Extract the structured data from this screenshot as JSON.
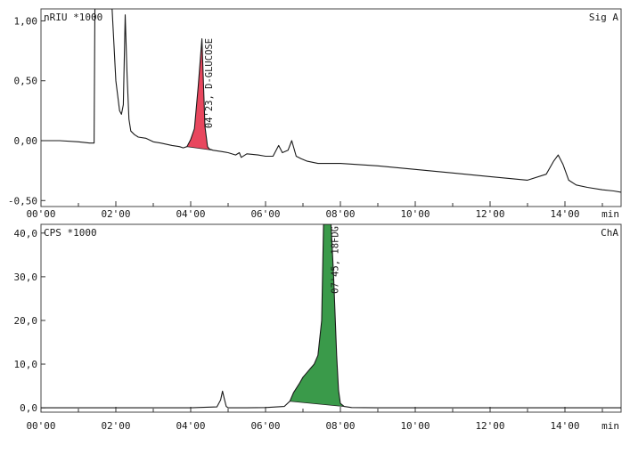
{
  "chart_data": [
    {
      "type": "line",
      "panel": "top",
      "ylabel": "nRIU *1000",
      "signal_label": "Sig A",
      "x_unit": "min",
      "xlim": [
        0,
        15.5
      ],
      "ylim": [
        -0.55,
        1.1
      ],
      "x_ticks": [
        0,
        2,
        4,
        6,
        8,
        10,
        12,
        14
      ],
      "x_tick_labels": [
        "00'00",
        "02'00",
        "04'00",
        "06'00",
        "08'00",
        "10'00",
        "12'00",
        "14'00"
      ],
      "y_ticks": [
        1.0,
        0.5,
        0.0,
        -0.5
      ],
      "y_tick_labels": [
        "1,00",
        "0,50",
        "0,00",
        "-0,50"
      ],
      "grid": false,
      "series": [
        {
          "x": [
            0,
            0.5,
            1.0,
            1.3,
            1.42,
            1.44,
            1.48,
            1.52,
            1.6,
            1.7,
            1.8,
            1.9,
            2.0,
            2.1,
            2.15,
            2.2,
            2.25,
            2.3,
            2.35,
            2.4,
            2.5,
            2.6,
            2.8,
            3.0,
            3.2,
            3.5,
            3.7,
            3.8,
            3.9,
            4.0,
            4.1,
            4.2,
            4.3,
            4.38,
            4.45,
            4.5,
            4.6,
            4.8,
            5.0,
            5.2,
            5.3,
            5.35,
            5.5,
            5.8,
            6.0,
            6.2,
            6.35,
            6.45,
            6.6,
            6.7,
            6.82,
            6.95,
            7.1,
            7.4,
            8.0,
            9.0,
            10.0,
            11.0,
            12.0,
            13.0,
            13.5,
            13.7,
            13.82,
            13.95,
            14.1,
            14.3,
            14.6,
            15.0,
            15.3,
            15.5
          ],
          "y": [
            0.0,
            0.0,
            -0.01,
            -0.02,
            -0.02,
            1.2,
            1.2,
            1.2,
            1.2,
            1.2,
            1.2,
            1.2,
            0.5,
            0.25,
            0.22,
            0.3,
            1.05,
            0.55,
            0.18,
            0.08,
            0.05,
            0.03,
            0.02,
            -0.01,
            -0.02,
            -0.04,
            -0.05,
            -0.06,
            -0.05,
            0.01,
            0.1,
            0.45,
            0.85,
            0.12,
            -0.05,
            -0.07,
            -0.08,
            -0.09,
            -0.1,
            -0.12,
            -0.1,
            -0.14,
            -0.11,
            -0.12,
            -0.13,
            -0.13,
            -0.04,
            -0.1,
            -0.08,
            0.0,
            -0.13,
            -0.15,
            -0.17,
            -0.19,
            -0.19,
            -0.21,
            -0.24,
            -0.27,
            -0.3,
            -0.33,
            -0.28,
            -0.17,
            -0.12,
            -0.2,
            -0.33,
            -0.37,
            -0.39,
            -0.41,
            -0.42,
            -0.43
          ]
        }
      ],
      "annotations": [
        {
          "text": "04'23, D-GLUCOSE",
          "x": 4.38,
          "y": 0.87
        }
      ],
      "highlight": {
        "peak": "04'23, D-GLUCOSE",
        "x_range": [
          3.85,
          4.62
        ],
        "fill": "#e8475e"
      }
    },
    {
      "type": "line",
      "panel": "bottom",
      "ylabel": "CPS *1000",
      "signal_label": "ChA",
      "x_unit": "min",
      "xlim": [
        0,
        15.5
      ],
      "ylim": [
        -1,
        42
      ],
      "x_ticks": [
        0,
        2,
        4,
        6,
        8,
        10,
        12,
        14
      ],
      "x_tick_labels": [
        "00'00",
        "02'00",
        "04'00",
        "06'00",
        "08'00",
        "10'00",
        "12'00",
        "14'00"
      ],
      "y_ticks": [
        40,
        30,
        20,
        10,
        0
      ],
      "y_tick_labels": [
        "40,0",
        "30,0",
        "20,0",
        "10,0",
        "0,0"
      ],
      "grid": false,
      "series": [
        {
          "x": [
            0,
            1.0,
            2.0,
            3.0,
            4.0,
            4.7,
            4.8,
            4.85,
            4.9,
            4.95,
            5.0,
            5.2,
            5.5,
            6.0,
            6.5,
            6.65,
            6.75,
            6.9,
            7.0,
            7.1,
            7.2,
            7.3,
            7.4,
            7.5,
            7.55,
            7.62,
            7.7,
            7.75,
            7.82,
            7.9,
            7.95,
            8.0,
            8.1,
            8.3,
            9.0,
            10.0,
            12.0,
            14.0,
            15.5
          ],
          "y": [
            0,
            0,
            0,
            0,
            0,
            0.2,
            1.8,
            3.8,
            2.0,
            0.3,
            0,
            0,
            0,
            0.05,
            0.3,
            1.5,
            3.5,
            5.5,
            7.0,
            8.0,
            9.0,
            10.0,
            12.0,
            20.0,
            45.0,
            45.0,
            45.0,
            45.0,
            30.0,
            12.0,
            4.0,
            1.0,
            0.3,
            0.05,
            0,
            0,
            0,
            0,
            0
          ]
        }
      ],
      "annotations": [
        {
          "text": "07'45, 18FDG",
          "x": 7.75,
          "y": 45
        }
      ],
      "highlight": {
        "peak": "07'45, 18FDG",
        "x_range": [
          6.55,
          8.1
        ],
        "fill": "#3a9a4a"
      }
    }
  ]
}
